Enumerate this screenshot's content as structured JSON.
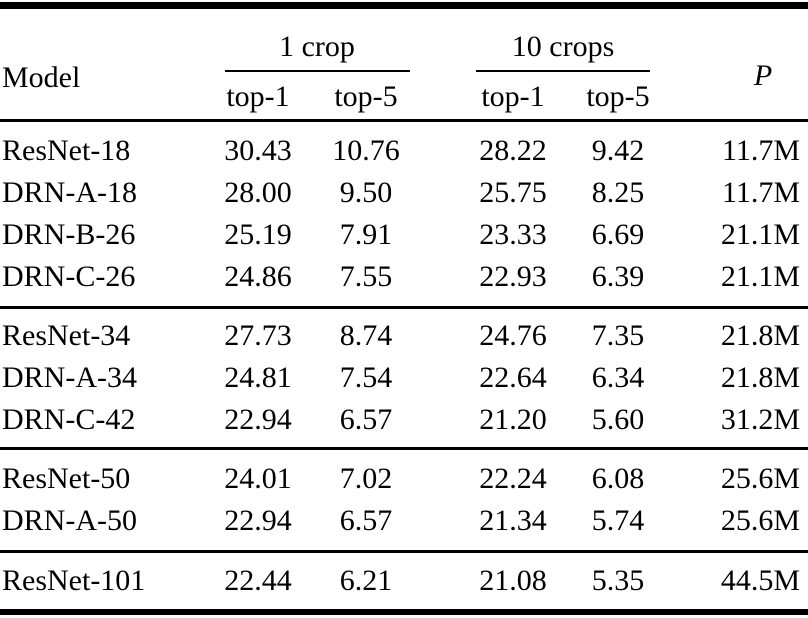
{
  "header": {
    "model": "Model",
    "group1": "1 crop",
    "group2": "10 crops",
    "subs": [
      "top-1",
      "top-5",
      "top-1",
      "top-5"
    ],
    "params": "P"
  },
  "rows": [
    {
      "model": "ResNet-18",
      "crop1_top1": "30.43",
      "crop1_top5": "10.76",
      "crop10_top1": "28.22",
      "crop10_top5": "9.42",
      "params": "11.7M"
    },
    {
      "model": "DRN-A-18",
      "crop1_top1": "28.00",
      "crop1_top5": "9.50",
      "crop10_top1": "25.75",
      "crop10_top5": "8.25",
      "params": "11.7M"
    },
    {
      "model": "DRN-B-26",
      "crop1_top1": "25.19",
      "crop1_top5": "7.91",
      "crop10_top1": "23.33",
      "crop10_top5": "6.69",
      "params": "21.1M"
    },
    {
      "model": "DRN-C-26",
      "crop1_top1": "24.86",
      "crop1_top5": "7.55",
      "crop10_top1": "22.93",
      "crop10_top5": "6.39",
      "params": "21.1M"
    },
    {
      "model": "ResNet-34",
      "crop1_top1": "27.73",
      "crop1_top5": "8.74",
      "crop10_top1": "24.76",
      "crop10_top5": "7.35",
      "params": "21.8M"
    },
    {
      "model": "DRN-A-34",
      "crop1_top1": "24.81",
      "crop1_top5": "7.54",
      "crop10_top1": "22.64",
      "crop10_top5": "6.34",
      "params": "21.8M"
    },
    {
      "model": "DRN-C-42",
      "crop1_top1": "22.94",
      "crop1_top5": "6.57",
      "crop10_top1": "21.20",
      "crop10_top5": "5.60",
      "params": "31.2M"
    },
    {
      "model": "ResNet-50",
      "crop1_top1": "24.01",
      "crop1_top5": "7.02",
      "crop10_top1": "22.24",
      "crop10_top5": "6.08",
      "params": "25.6M"
    },
    {
      "model": "DRN-A-50",
      "crop1_top1": "22.94",
      "crop1_top5": "6.57",
      "crop10_top1": "21.34",
      "crop10_top5": "5.74",
      "params": "25.6M"
    },
    {
      "model": "ResNet-101",
      "crop1_top1": "22.44",
      "crop1_top5": "6.21",
      "crop10_top1": "21.08",
      "crop10_top5": "5.35",
      "params": "44.5M"
    }
  ],
  "colors": {
    "text": "#000000",
    "rule": "#000000",
    "background": "#ffffff"
  }
}
